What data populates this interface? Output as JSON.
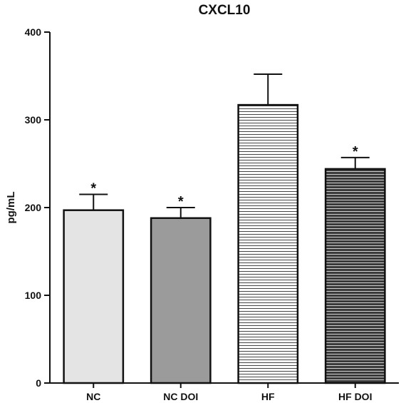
{
  "chart_data": {
    "type": "bar",
    "title": "CXCL10",
    "xlabel": "",
    "ylabel": "pg/mL",
    "ylim": [
      0,
      400
    ],
    "yticks": [
      0,
      100,
      200,
      300,
      400
    ],
    "grid": false,
    "categories": [
      "NC",
      "NC DOI",
      "HF",
      "HF DOI"
    ],
    "values": [
      197,
      188,
      317,
      244
    ],
    "error": [
      18,
      12,
      35,
      13
    ],
    "annotations": [
      "*",
      "*",
      "",
      "*"
    ],
    "fills": [
      "light-gray-solid",
      "gray-solid",
      "white-fine-horizontal-stripes",
      "dark-gray-horizontal-stripes"
    ]
  }
}
